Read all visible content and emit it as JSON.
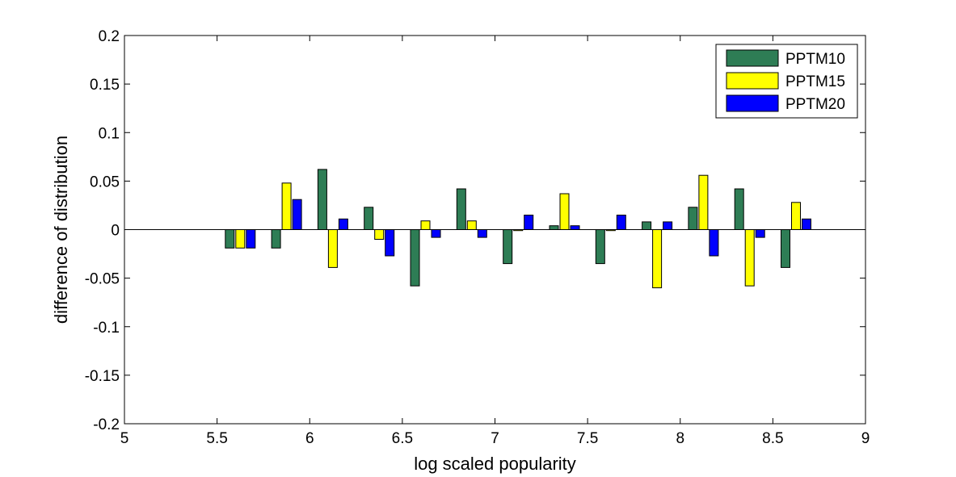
{
  "chart_data": {
    "type": "bar",
    "xlabel": "log scaled popularity",
    "ylabel": "difference of distribution",
    "xlim": [
      5,
      9
    ],
    "ylim": [
      -0.2,
      0.2
    ],
    "xticks": [
      5,
      5.5,
      6,
      6.5,
      7,
      7.5,
      8,
      8.5,
      9
    ],
    "xtick_labels": [
      "5",
      "5.5",
      "6",
      "6.5",
      "7",
      "7.5",
      "8",
      "8.5",
      "9"
    ],
    "yticks": [
      -0.2,
      -0.15,
      -0.1,
      -0.05,
      0,
      0.05,
      0.1,
      0.15,
      0.2
    ],
    "ytick_labels": [
      "-0.2",
      "-0.15",
      "-0.1",
      "-0.05",
      "0",
      "0.05",
      "0.1",
      "0.15",
      "0.2"
    ],
    "grid": false,
    "legend_position": "top-right",
    "x": [
      5.625,
      5.875,
      6.125,
      6.375,
      6.625,
      6.875,
      7.125,
      7.375,
      7.625,
      7.875,
      8.125,
      8.375,
      8.625
    ],
    "series": [
      {
        "name": "PPTM10",
        "color": "#2e7d55",
        "values": [
          -0.019,
          -0.019,
          0.062,
          0.023,
          -0.058,
          0.042,
          -0.035,
          0.004,
          -0.035,
          0.008,
          0.023,
          0.042,
          -0.039
        ]
      },
      {
        "name": "PPTM15",
        "color": "#ffff00",
        "values": [
          -0.019,
          0.048,
          -0.039,
          -0.01,
          0.009,
          0.009,
          -0.001,
          0.037,
          -0.001,
          -0.06,
          0.056,
          -0.058,
          0.028
        ]
      },
      {
        "name": "PPTM20",
        "color": "#0000ff",
        "values": [
          -0.019,
          0.031,
          0.011,
          -0.027,
          -0.008,
          -0.008,
          0.015,
          0.004,
          0.015,
          0.008,
          -0.027,
          -0.008,
          0.011
        ]
      }
    ]
  }
}
